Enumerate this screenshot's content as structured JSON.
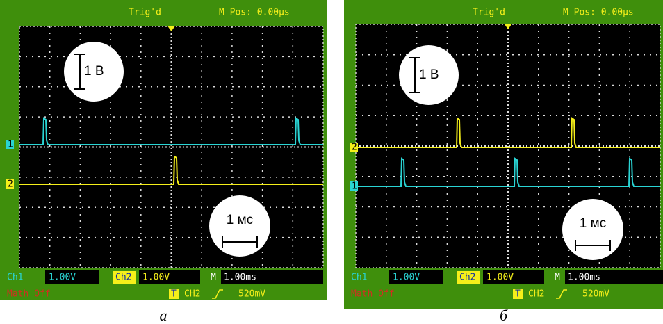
{
  "panels": [
    {
      "header": {
        "status": "Trig'd",
        "position": "M Pos: 0.00µs"
      },
      "channel_markers": [
        "1",
        "2"
      ],
      "annotations": {
        "volts": "1 В",
        "time": "1 мс"
      },
      "status_bar": {
        "ch1_label": "Ch1",
        "ch1_scale": "1.00V",
        "ch2_label": "Ch2",
        "ch2_scale": "1.00V",
        "timebase_label": "M",
        "timebase": "1.00ms",
        "math": "Math Off",
        "trigger_marker": "T",
        "trigger_source": "CH2",
        "trigger_level": "520mV"
      },
      "caption": "а"
    },
    {
      "header": {
        "status": "Trig'd",
        "position": "M Pos: 0.00µs"
      },
      "channel_markers": [
        "1",
        "2"
      ],
      "annotations": {
        "volts": "1 В",
        "time": "1 мс"
      },
      "status_bar": {
        "ch1_label": "Ch1",
        "ch1_scale": "1.00V",
        "ch2_label": "Ch2",
        "ch2_scale": "1.00V",
        "timebase_label": "M",
        "timebase": "1.00ms",
        "math": "Math Off",
        "trigger_marker": "T",
        "trigger_source": "CH2",
        "trigger_level": "520mV"
      },
      "caption": "б"
    }
  ]
}
